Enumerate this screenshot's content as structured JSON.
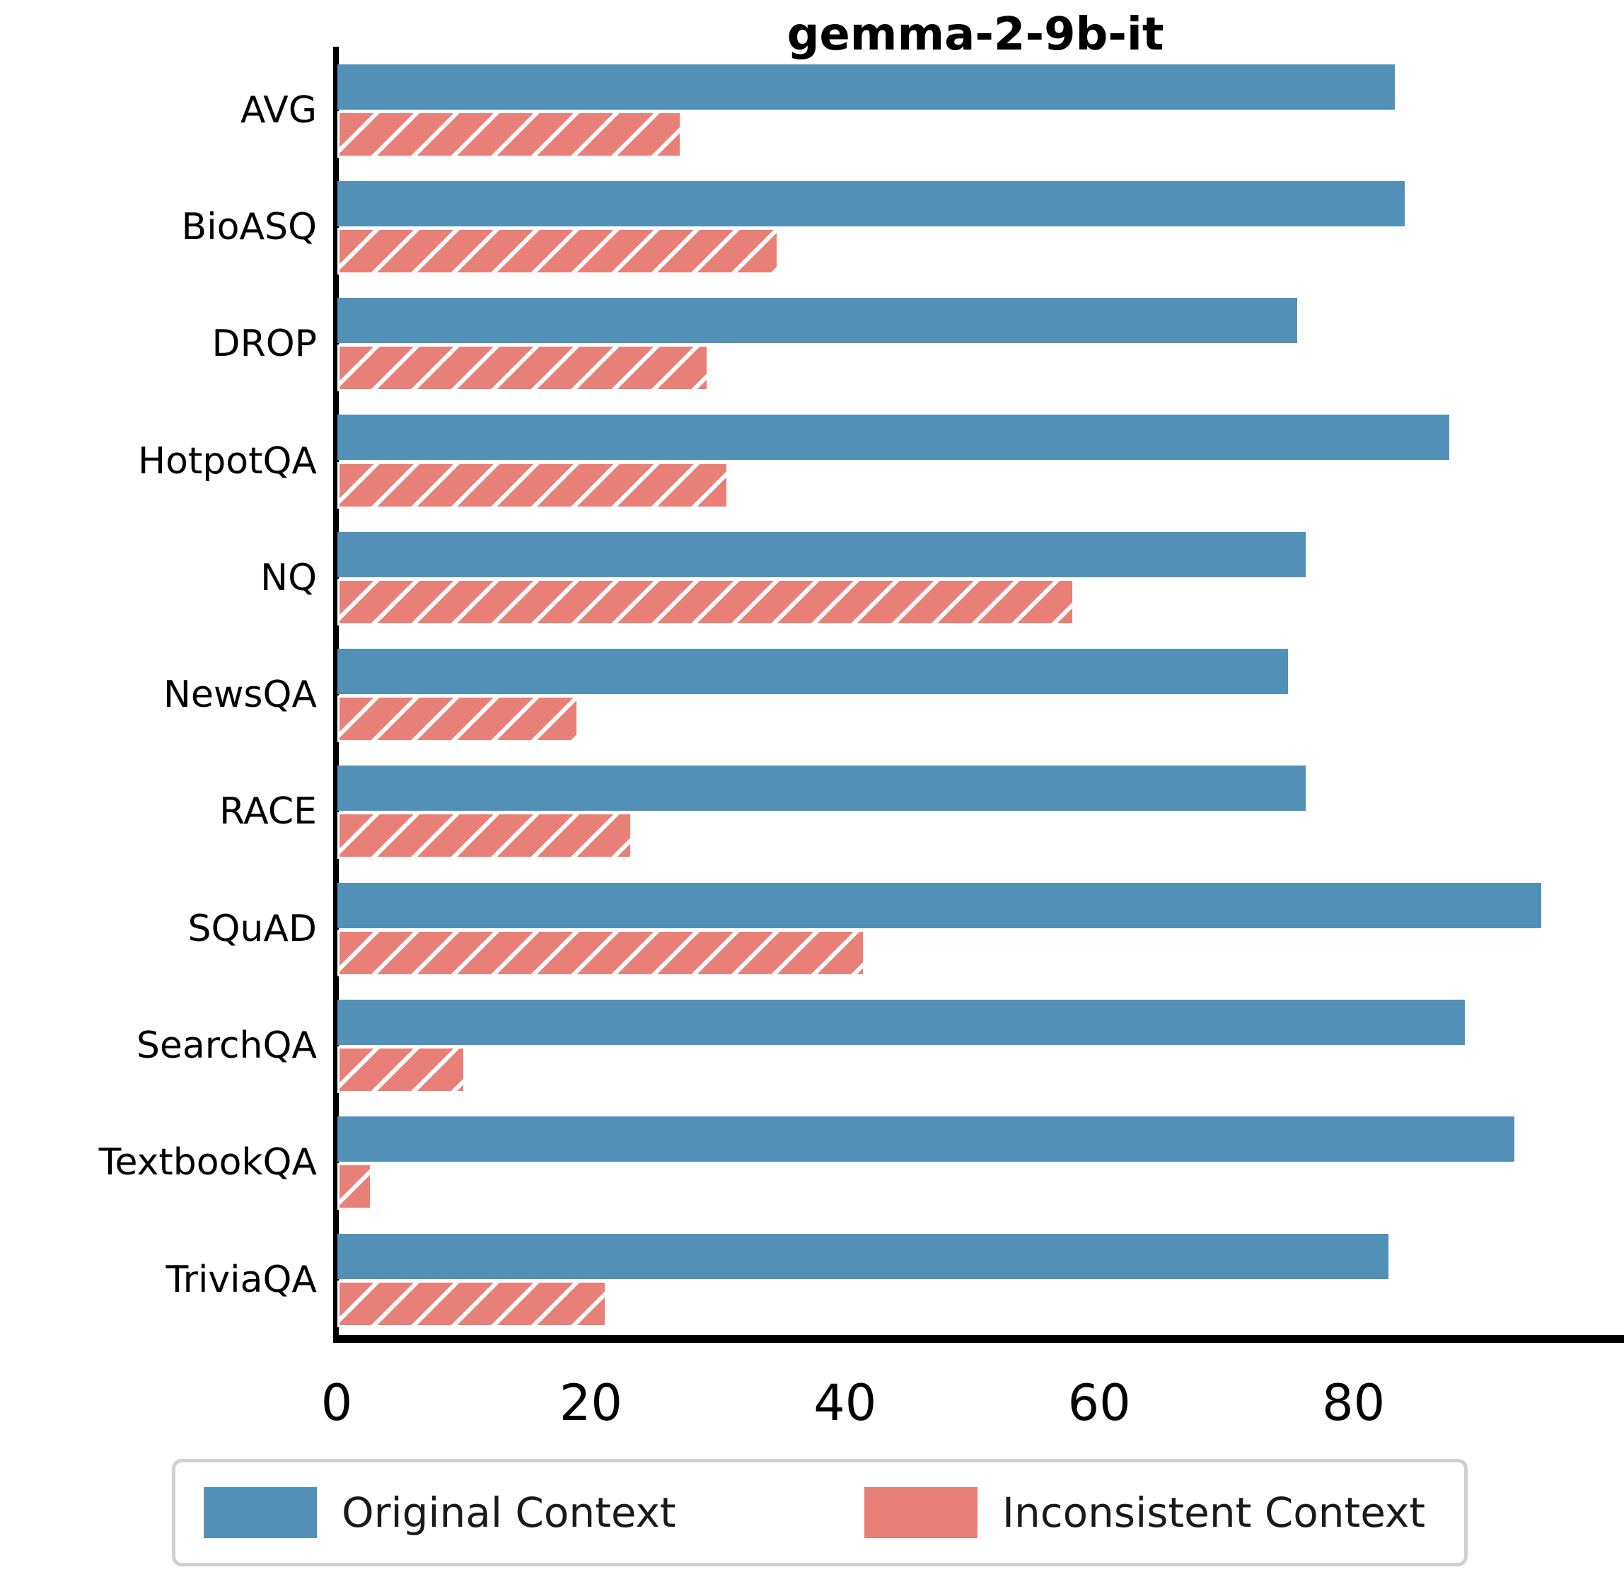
{
  "title": "gemma-2-9b-it",
  "colors": {
    "original": "#5390B8",
    "inconsistent": "#E88078",
    "axis": "#000000",
    "legend_border": "#d0d0d0"
  },
  "legend": {
    "items": [
      {
        "label": "Original Context",
        "color": "#5390B8",
        "hatch": "none"
      },
      {
        "label": "Inconsistent Context",
        "color": "#E88078",
        "hatch": "none"
      }
    ]
  },
  "chart_data": {
    "type": "bar",
    "orientation": "horizontal",
    "title": "gemma-2-9b-it",
    "categories": [
      "AVG",
      "BioASQ",
      "DROP",
      "HotpotQA",
      "NQ",
      "NewsQA",
      "RACE",
      "SQuAD",
      "SearchQA",
      "TextbookQA",
      "TriviaQA"
    ],
    "series": [
      {
        "name": "Original Context",
        "color": "#5390B8",
        "hatch": "none",
        "values": [
          83.2,
          84.0,
          75.5,
          87.5,
          76.2,
          74.8,
          76.2,
          94.7,
          88.7,
          92.6,
          82.7
        ]
      },
      {
        "name": "Inconsistent Context",
        "color": "#E88078",
        "hatch": "/",
        "values": [
          27.1,
          34.7,
          29.2,
          30.8,
          58.0,
          19.0,
          23.2,
          41.5,
          10.1,
          2.7,
          21.2
        ]
      }
    ],
    "xlabel": "",
    "ylabel": "",
    "x_ticks": [
      0,
      20,
      40,
      60,
      80
    ],
    "xlim": [
      0,
      101
    ],
    "grid": false,
    "legend_position": "bottom"
  }
}
